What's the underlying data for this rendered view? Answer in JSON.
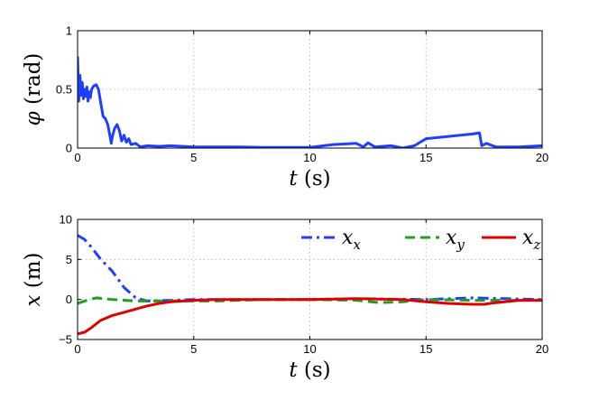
{
  "chart_data": [
    {
      "type": "line",
      "xlabel": "t (s)",
      "ylabel": "φ (rad)",
      "xlim": [
        0,
        20
      ],
      "ylim": [
        0,
        1
      ],
      "xticks": [
        "0",
        "5",
        "10",
        "15",
        "20"
      ],
      "yticks": [
        "0",
        "0.5",
        "1"
      ],
      "grid": true,
      "series": [
        {
          "color": "#1f3fff",
          "style": "solid",
          "x": [
            0,
            0.05,
            0.1,
            0.15,
            0.2,
            0.25,
            0.3,
            0.35,
            0.4,
            0.45,
            0.5,
            0.55,
            0.6,
            0.7,
            0.8,
            0.9,
            1.0,
            1.1,
            1.2,
            1.3,
            1.4,
            1.45,
            1.5,
            1.6,
            1.7,
            1.8,
            1.9,
            2.0,
            2.1,
            2.2,
            2.3,
            2.5,
            2.7,
            3.0,
            3.5,
            4.0,
            5.0,
            6.0,
            7.0,
            8.0,
            9.0,
            10.0,
            11.0,
            12.0,
            12.3,
            12.5,
            12.8,
            13.5,
            14.0,
            14.5,
            15.0,
            16.0,
            17.0,
            17.3,
            17.4,
            17.6,
            18.0,
            19.0,
            20.0
          ],
          "values": [
            0.78,
            0.4,
            0.62,
            0.45,
            0.56,
            0.42,
            0.5,
            0.44,
            0.52,
            0.4,
            0.48,
            0.43,
            0.5,
            0.53,
            0.54,
            0.5,
            0.38,
            0.27,
            0.25,
            0.2,
            0.1,
            0.04,
            0.1,
            0.17,
            0.2,
            0.15,
            0.06,
            0.11,
            0.05,
            0.08,
            0.03,
            0.04,
            0.01,
            0.02,
            0.015,
            0.02,
            0.01,
            0.01,
            0.01,
            0.005,
            0.005,
            0.005,
            0.03,
            0.04,
            0.01,
            0.045,
            0.01,
            0.02,
            0.0,
            0.02,
            0.08,
            0.1,
            0.12,
            0.13,
            0.02,
            0.04,
            0.01,
            0.01,
            0.02
          ]
        }
      ]
    },
    {
      "type": "line",
      "xlabel": "t (s)",
      "ylabel": "x (m)",
      "xlim": [
        0,
        20
      ],
      "ylim": [
        -5,
        10
      ],
      "xticks": [
        "0",
        "5",
        "10",
        "15",
        "20"
      ],
      "yticks": [
        "−5",
        "0",
        "5",
        "10"
      ],
      "grid": true,
      "legend_position": "top-right",
      "series": [
        {
          "name": "x_x",
          "color": "#1f3fff",
          "style": "dashdot",
          "x": [
            0,
            0.3,
            0.6,
            1.0,
            1.5,
            2.0,
            2.5,
            3.0,
            4.0,
            5.0,
            10.0,
            12.0,
            15.0,
            17.0,
            20.0
          ],
          "values": [
            8.0,
            7.5,
            6.5,
            5.0,
            3.5,
            1.5,
            0.2,
            -0.2,
            -0.1,
            0.0,
            0.0,
            0.1,
            0.0,
            0.2,
            0.0
          ]
        },
        {
          "name": "x_y",
          "color": "#20a020",
          "style": "dashed",
          "x": [
            0,
            0.3,
            0.8,
            1.5,
            2.5,
            4.0,
            6.0,
            8.0,
            10.0,
            12.0,
            13.0,
            14.0,
            15.0,
            17.0,
            20.0
          ],
          "values": [
            -0.5,
            -0.2,
            0.2,
            0.0,
            -0.2,
            -0.2,
            -0.2,
            0.0,
            0.0,
            -0.1,
            -0.4,
            -0.3,
            0.0,
            -0.1,
            -0.1
          ]
        },
        {
          "name": "x_z",
          "color": "#e00000",
          "style": "solid",
          "x": [
            0,
            0.3,
            0.6,
            1.0,
            1.5,
            2.0,
            2.5,
            3.0,
            3.5,
            4.0,
            5.0,
            6.0,
            8.0,
            10.0,
            12.0,
            14.0,
            15.0,
            16.0,
            17.0,
            17.5,
            18.0,
            19.0,
            20.0
          ],
          "values": [
            -4.3,
            -4.1,
            -3.5,
            -2.6,
            -2.0,
            -1.6,
            -1.2,
            -0.8,
            -0.5,
            -0.3,
            -0.1,
            0.0,
            0.0,
            0.0,
            0.1,
            0.0,
            -0.3,
            -0.5,
            -0.6,
            -0.6,
            -0.4,
            -0.1,
            -0.1
          ]
        }
      ]
    }
  ]
}
